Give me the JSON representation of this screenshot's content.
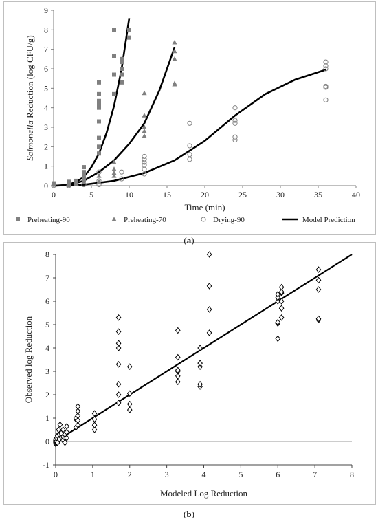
{
  "chart_data": [
    {
      "type": "scatter",
      "panel": "a",
      "caption_letter": "a",
      "xlabel": "Time (min)",
      "ylabel_italic": "Salmonella",
      "ylabel_rest": " Reduction (log CFU/g)",
      "xlim": [
        0,
        40
      ],
      "ylim": [
        0,
        9
      ],
      "xticks": [
        0,
        5,
        10,
        15,
        20,
        25,
        30,
        35,
        40
      ],
      "yticks": [
        0,
        1,
        2,
        3,
        4,
        5,
        6,
        7,
        8,
        9
      ],
      "grid": false,
      "legend": "bottom",
      "series": [
        {
          "name": "Preheating-90",
          "marker": "square",
          "color": "#808080",
          "points": [
            [
              0,
              0.05
            ],
            [
              0,
              0.12
            ],
            [
              2,
              0.05
            ],
            [
              2,
              0.2
            ],
            [
              3,
              0.1
            ],
            [
              3,
              0.25
            ],
            [
              4,
              0.3
            ],
            [
              4,
              0.55
            ],
            [
              4,
              0.7
            ],
            [
              4,
              0.95
            ],
            [
              6,
              1.65
            ],
            [
              6,
              2.0
            ],
            [
              6,
              2.45
            ],
            [
              6,
              3.3
            ],
            [
              6,
              4.0
            ],
            [
              6,
              4.2
            ],
            [
              6,
              4.35
            ],
            [
              6,
              4.7
            ],
            [
              6,
              5.3
            ],
            [
              8,
              4.7
            ],
            [
              8,
              5.7
            ],
            [
              8,
              6.65
            ],
            [
              8,
              8.0
            ],
            [
              9,
              5.3
            ],
            [
              9,
              5.7
            ],
            [
              9,
              6.0
            ],
            [
              9,
              6.35
            ],
            [
              9,
              6.5
            ],
            [
              10,
              7.6
            ],
            [
              10,
              8.0
            ]
          ]
        },
        {
          "name": "Preheating-70",
          "marker": "triangle",
          "color": "#808080",
          "points": [
            [
              0,
              0.05
            ],
            [
              2,
              0.02
            ],
            [
              3,
              0.1
            ],
            [
              4,
              0.2
            ],
            [
              4,
              0.5
            ],
            [
              6,
              0.2
            ],
            [
              6,
              0.5
            ],
            [
              8,
              0.5
            ],
            [
              8,
              0.65
            ],
            [
              8,
              0.85
            ],
            [
              8,
              1.2
            ],
            [
              12,
              2.55
            ],
            [
              12,
              2.8
            ],
            [
              12,
              3.0
            ],
            [
              12,
              3.6
            ],
            [
              12,
              4.75
            ],
            [
              16,
              5.2
            ],
            [
              16,
              5.25
            ],
            [
              16,
              6.5
            ],
            [
              16,
              6.9
            ],
            [
              16,
              7.35
            ]
          ]
        },
        {
          "name": "Drying-90",
          "marker": "circle",
          "color": "#808080",
          "points": [
            [
              0,
              0.0
            ],
            [
              2,
              0.0
            ],
            [
              4,
              0.05
            ],
            [
              6,
              0.05
            ],
            [
              6,
              0.25
            ],
            [
              6,
              0.7
            ],
            [
              9,
              0.35
            ],
            [
              9,
              0.7
            ],
            [
              12,
              0.6
            ],
            [
              12,
              0.85
            ],
            [
              12,
              1.05
            ],
            [
              12,
              1.2
            ],
            [
              12,
              1.35
            ],
            [
              12,
              1.5
            ],
            [
              18,
              1.35
            ],
            [
              18,
              1.6
            ],
            [
              18,
              2.05
            ],
            [
              18,
              3.2
            ],
            [
              24,
              2.35
            ],
            [
              24,
              2.5
            ],
            [
              24,
              3.2
            ],
            [
              24,
              3.35
            ],
            [
              24,
              4.0
            ],
            [
              36,
              4.4
            ],
            [
              36,
              5.05
            ],
            [
              36,
              5.1
            ],
            [
              36,
              6.0
            ],
            [
              36,
              6.15
            ],
            [
              36,
              6.35
            ]
          ]
        },
        {
          "name": "Model Prediction",
          "marker": "line",
          "color": "#000000",
          "curves": [
            [
              [
                0,
                0
              ],
              [
                1,
                0.01
              ],
              [
                2,
                0.06
              ],
              [
                3,
                0.2
              ],
              [
                4,
                0.45
              ],
              [
                5,
                0.95
              ],
              [
                6,
                1.65
              ],
              [
                7,
                2.7
              ],
              [
                8,
                4.1
              ],
              [
                9,
                6.0
              ],
              [
                10,
                8.6
              ]
            ],
            [
              [
                0,
                0
              ],
              [
                2,
                0.04
              ],
              [
                4,
                0.25
              ],
              [
                6,
                0.7
              ],
              [
                8,
                1.3
              ],
              [
                10,
                2.15
              ],
              [
                12,
                3.2
              ],
              [
                14,
                4.9
              ],
              [
                16,
                7.1
              ]
            ],
            [
              [
                0,
                0
              ],
              [
                4,
                0.05
              ],
              [
                8,
                0.25
              ],
              [
                12,
                0.65
              ],
              [
                16,
                1.3
              ],
              [
                20,
                2.3
              ],
              [
                24,
                3.6
              ],
              [
                28,
                4.7
              ],
              [
                32,
                5.45
              ],
              [
                36,
                5.95
              ]
            ]
          ]
        }
      ]
    },
    {
      "type": "scatter",
      "panel": "b",
      "caption_letter": "b",
      "xlabel": "Modeled Log Reduction",
      "ylabel": "Observed log Reduction",
      "xlim": [
        0,
        8
      ],
      "ylim": [
        -1,
        8
      ],
      "xticks": [
        0,
        1,
        2,
        3,
        4,
        5,
        6,
        7,
        8
      ],
      "yticks": [
        -1,
        0,
        1,
        2,
        3,
        4,
        5,
        6,
        7,
        8
      ],
      "grid": false,
      "legend": "none",
      "series": [
        {
          "marker": "diamond",
          "color": "#000000",
          "points": [
            [
              0,
              -0.1
            ],
            [
              0,
              -0.05
            ],
            [
              0,
              0
            ],
            [
              0,
              0.05
            ],
            [
              0,
              0.1
            ],
            [
              0.02,
              0
            ],
            [
              0.03,
              0.15
            ],
            [
              0.05,
              0.25
            ],
            [
              0.05,
              -0.05
            ],
            [
              0.08,
              0.5
            ],
            [
              0.1,
              0.1
            ],
            [
              0.1,
              0.3
            ],
            [
              0.12,
              0.72
            ],
            [
              0.15,
              0.2
            ],
            [
              0.15,
              0.35
            ],
            [
              0.2,
              0.05
            ],
            [
              0.2,
              0.2
            ],
            [
              0.2,
              0.5
            ],
            [
              0.25,
              0.15
            ],
            [
              0.25,
              0.3
            ],
            [
              0.25,
              -0.05
            ],
            [
              0.3,
              0.15
            ],
            [
              0.3,
              0.4
            ],
            [
              0.3,
              0.65
            ],
            [
              0.55,
              0.6
            ],
            [
              0.55,
              0.95
            ],
            [
              0.55,
              1.0
            ],
            [
              0.6,
              0.7
            ],
            [
              0.6,
              0.9
            ],
            [
              0.6,
              1.1
            ],
            [
              0.6,
              1.3
            ],
            [
              0.6,
              1.5
            ],
            [
              1.05,
              0.5
            ],
            [
              1.05,
              0.7
            ],
            [
              1.05,
              0.95
            ],
            [
              1.05,
              1.2
            ],
            [
              1.7,
              1.65
            ],
            [
              1.7,
              2.0
            ],
            [
              1.7,
              2.45
            ],
            [
              1.7,
              3.3
            ],
            [
              1.7,
              4.0
            ],
            [
              1.7,
              4.2
            ],
            [
              1.7,
              4.7
            ],
            [
              1.7,
              5.3
            ],
            [
              2.0,
              1.35
            ],
            [
              2.0,
              1.6
            ],
            [
              2.0,
              2.05
            ],
            [
              2.0,
              3.2
            ],
            [
              3.3,
              2.55
            ],
            [
              3.3,
              2.8
            ],
            [
              3.3,
              3.0
            ],
            [
              3.3,
              3.05
            ],
            [
              3.3,
              3.6
            ],
            [
              3.3,
              4.75
            ],
            [
              3.9,
              2.35
            ],
            [
              3.9,
              2.45
            ],
            [
              3.9,
              3.2
            ],
            [
              3.9,
              3.35
            ],
            [
              3.9,
              4.0
            ],
            [
              4.15,
              4.65
            ],
            [
              4.15,
              5.65
            ],
            [
              4.15,
              6.65
            ],
            [
              4.15,
              8.0
            ],
            [
              6.0,
              4.4
            ],
            [
              6.0,
              5.05
            ],
            [
              6.0,
              5.1
            ],
            [
              6.0,
              6.0
            ],
            [
              6.0,
              6.15
            ],
            [
              6.0,
              6.3
            ],
            [
              6.1,
              5.3
            ],
            [
              6.1,
              5.7
            ],
            [
              6.1,
              6.0
            ],
            [
              6.1,
              6.35
            ],
            [
              6.1,
              6.4
            ],
            [
              6.1,
              6.6
            ],
            [
              7.1,
              5.2
            ],
            [
              7.1,
              5.25
            ],
            [
              7.1,
              6.5
            ],
            [
              7.1,
              6.9
            ],
            [
              7.1,
              7.35
            ]
          ]
        },
        {
          "marker": "line",
          "color": "#000000",
          "line": [
            [
              0,
              0
            ],
            [
              8,
              8
            ]
          ]
        }
      ]
    }
  ]
}
